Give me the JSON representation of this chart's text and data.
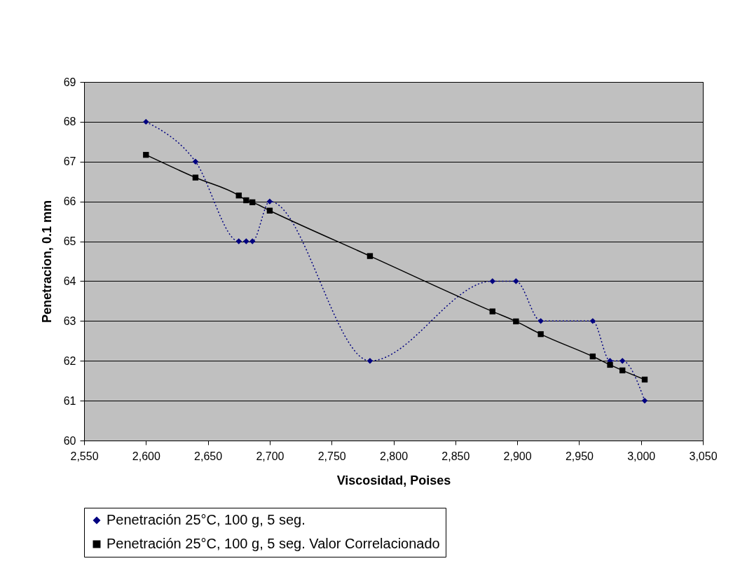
{
  "chart_data": {
    "type": "line",
    "xlabel": "Viscosidad, Poises",
    "ylabel": "Penetracion, 0.1 mm",
    "xlim": [
      2550,
      3050
    ],
    "xticks": [
      {
        "value": 2550,
        "label": "2,550"
      },
      {
        "value": 2600,
        "label": "2,600"
      },
      {
        "value": 2650,
        "label": "2,650"
      },
      {
        "value": 2700,
        "label": "2,700"
      },
      {
        "value": 2750,
        "label": "2,750"
      },
      {
        "value": 2800,
        "label": "2,800"
      },
      {
        "value": 2850,
        "label": "2,850"
      },
      {
        "value": 2900,
        "label": "2,900"
      },
      {
        "value": 2950,
        "label": "2,950"
      },
      {
        "value": 3000,
        "label": "3,000"
      },
      {
        "value": 3050,
        "label": "3,050"
      }
    ],
    "ylim": [
      60,
      69
    ],
    "yticks": [
      60,
      61,
      62,
      63,
      64,
      65,
      66,
      67,
      68,
      69
    ],
    "grid": "y",
    "legend": "bottom",
    "series": [
      {
        "name": "Penetración 25°C, 100 g, 5 seg.",
        "color": "#000080",
        "marker": "diamond",
        "line_style": "dotted",
        "x": [
          2600,
          2640,
          2675,
          2681,
          2686,
          2700,
          2781,
          2880,
          2899,
          2919,
          2961,
          2975,
          2985,
          3003
        ],
        "values": [
          68,
          67,
          65,
          65,
          65,
          66,
          62,
          64,
          64,
          63,
          63,
          62,
          62,
          61
        ]
      },
      {
        "name": "Penetración 25°C, 100 g, 5 seg. Valor Correlacionado",
        "color": "#000000",
        "marker": "square",
        "line_style": "solid",
        "x": [
          2600,
          2640,
          2675,
          2681,
          2686,
          2700,
          2781,
          2880,
          2899,
          2919,
          2961,
          2975,
          2985,
          3003
        ],
        "values": [
          67.17,
          66.6,
          66.15,
          66.03,
          65.98,
          65.77,
          64.63,
          63.24,
          62.99,
          62.67,
          62.11,
          61.9,
          61.76,
          61.53
        ]
      }
    ]
  }
}
